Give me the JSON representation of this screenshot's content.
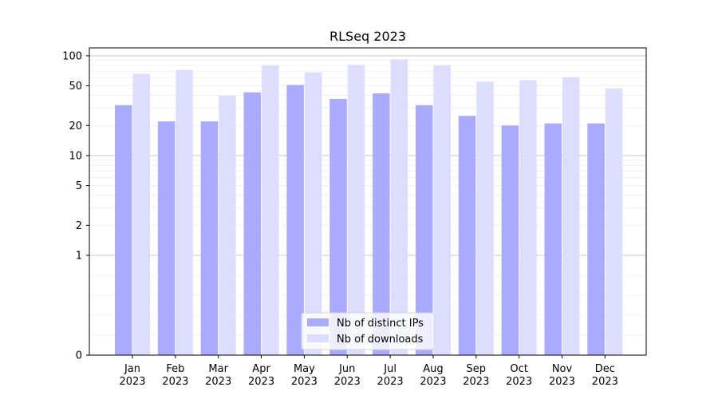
{
  "chart_data": {
    "type": "bar",
    "title": "RLSeq 2023",
    "xlabel": "",
    "ylabel": "",
    "y_scale": "symlog",
    "ylim": [
      0,
      120
    ],
    "y_ticks": [
      0,
      1,
      2,
      5,
      10,
      20,
      50,
      100
    ],
    "grid": true,
    "legend_position": "bottom-center",
    "categories": [
      "Jan\n2023",
      "Feb\n2023",
      "Mar\n2023",
      "Apr\n2023",
      "May\n2023",
      "Jun\n2023",
      "Jul\n2023",
      "Aug\n2023",
      "Sep\n2023",
      "Oct\n2023",
      "Nov\n2023",
      "Dec\n2023"
    ],
    "series": [
      {
        "name": "Nb of distinct IPs",
        "color": "#aaaaff",
        "values": [
          32,
          22,
          22,
          43,
          51,
          37,
          42,
          32,
          25,
          20,
          21,
          21
        ]
      },
      {
        "name": "Nb of downloads",
        "color": "#ddddff",
        "values": [
          66,
          72,
          40,
          80,
          68,
          81,
          92,
          80,
          55,
          57,
          61,
          47
        ]
      }
    ]
  }
}
